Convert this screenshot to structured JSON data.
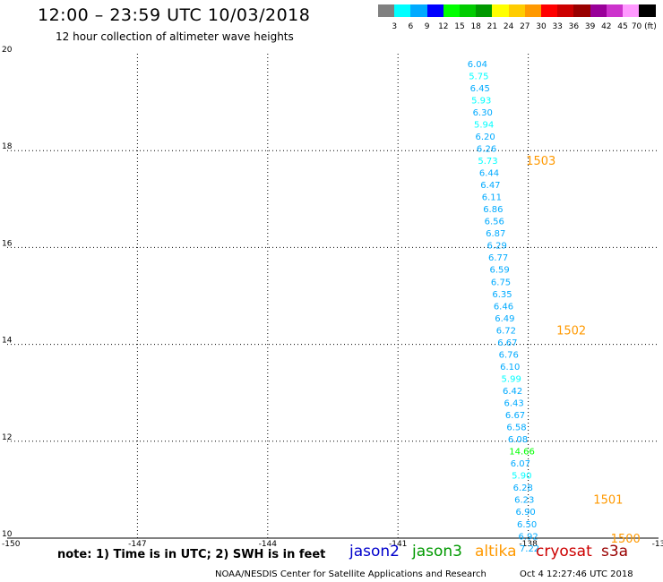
{
  "header": {
    "title": "12:00 – 23:59 UTC 10/03/2018",
    "subtitle": "12 hour collection of altimeter wave heights"
  },
  "color_scale": {
    "labels": [
      "3",
      "6",
      "9",
      "12",
      "15",
      "18",
      "21",
      "24",
      "27",
      "30",
      "33",
      "36",
      "39",
      "42",
      "45",
      "70 (ft)"
    ],
    "colors": [
      "#808080",
      "#00ffff",
      "#00aaff",
      "#0000ff",
      "#00ff00",
      "#00cc00",
      "#009900",
      "#ffff00",
      "#ffcc00",
      "#ff9900",
      "#ff0000",
      "#cc0000",
      "#990000",
      "#990099",
      "#cc33cc",
      "#ff99ff",
      "#000000"
    ]
  },
  "chart_data": {
    "type": "scatter",
    "xlim": [
      -150,
      -135
    ],
    "ylim": [
      10,
      20
    ],
    "x_ticks": [
      "-150",
      "-147",
      "-144",
      "-141",
      "-138",
      "-13"
    ],
    "y_ticks": [
      "10",
      "12",
      "14",
      "16",
      "18",
      "20"
    ],
    "grid": true,
    "points": [
      {
        "lon": -139.4,
        "lat": 19.8,
        "swh": "6.04",
        "color": "#00aaff"
      },
      {
        "lon": -139.37,
        "lat": 19.55,
        "swh": "5.75",
        "color": "#00ffff"
      },
      {
        "lon": -139.34,
        "lat": 19.3,
        "swh": "6.45",
        "color": "#00aaff"
      },
      {
        "lon": -139.31,
        "lat": 19.05,
        "swh": "5.93",
        "color": "#00ffff"
      },
      {
        "lon": -139.28,
        "lat": 18.8,
        "swh": "6.30",
        "color": "#00aaff"
      },
      {
        "lon": -139.25,
        "lat": 18.55,
        "swh": "5.94",
        "color": "#00ffff"
      },
      {
        "lon": -139.22,
        "lat": 18.3,
        "swh": "6.20",
        "color": "#00aaff"
      },
      {
        "lon": -139.19,
        "lat": 18.05,
        "swh": "6.26",
        "color": "#00aaff"
      },
      {
        "lon": -139.16,
        "lat": 17.8,
        "swh": "5.73",
        "color": "#00ffff"
      },
      {
        "lon": -139.13,
        "lat": 17.55,
        "swh": "6.44",
        "color": "#00aaff"
      },
      {
        "lon": -139.1,
        "lat": 17.3,
        "swh": "6.47",
        "color": "#00aaff"
      },
      {
        "lon": -139.07,
        "lat": 17.05,
        "swh": "6.11",
        "color": "#00aaff"
      },
      {
        "lon": -139.04,
        "lat": 16.8,
        "swh": "6.86",
        "color": "#00aaff"
      },
      {
        "lon": -139.01,
        "lat": 16.55,
        "swh": "6.56",
        "color": "#00aaff"
      },
      {
        "lon": -138.98,
        "lat": 16.3,
        "swh": "6.87",
        "color": "#00aaff"
      },
      {
        "lon": -138.95,
        "lat": 16.05,
        "swh": "6.29",
        "color": "#00aaff"
      },
      {
        "lon": -138.92,
        "lat": 15.8,
        "swh": "6.77",
        "color": "#00aaff"
      },
      {
        "lon": -138.89,
        "lat": 15.55,
        "swh": "6.59",
        "color": "#00aaff"
      },
      {
        "lon": -138.86,
        "lat": 15.3,
        "swh": "6.75",
        "color": "#00aaff"
      },
      {
        "lon": -138.83,
        "lat": 15.05,
        "swh": "6.35",
        "color": "#00aaff"
      },
      {
        "lon": -138.8,
        "lat": 14.8,
        "swh": "6.46",
        "color": "#00aaff"
      },
      {
        "lon": -138.77,
        "lat": 14.55,
        "swh": "6.49",
        "color": "#00aaff"
      },
      {
        "lon": -138.74,
        "lat": 14.3,
        "swh": "6.72",
        "color": "#00aaff"
      },
      {
        "lon": -138.71,
        "lat": 14.05,
        "swh": "6.67",
        "color": "#00aaff"
      },
      {
        "lon": -138.68,
        "lat": 13.8,
        "swh": "6.76",
        "color": "#00aaff"
      },
      {
        "lon": -138.65,
        "lat": 13.55,
        "swh": "6.10",
        "color": "#00aaff"
      },
      {
        "lon": -138.62,
        "lat": 13.3,
        "swh": "5.99",
        "color": "#00ffff"
      },
      {
        "lon": -138.59,
        "lat": 13.05,
        "swh": "6.42",
        "color": "#00aaff"
      },
      {
        "lon": -138.56,
        "lat": 12.8,
        "swh": "6.43",
        "color": "#00aaff"
      },
      {
        "lon": -138.53,
        "lat": 12.55,
        "swh": "6.67",
        "color": "#00aaff"
      },
      {
        "lon": -138.5,
        "lat": 12.3,
        "swh": "6.58",
        "color": "#00aaff"
      },
      {
        "lon": -138.47,
        "lat": 12.05,
        "swh": "6.08",
        "color": "#00aaff"
      },
      {
        "lon": -138.44,
        "lat": 11.8,
        "swh": "14.66",
        "color": "#00ff00"
      },
      {
        "lon": -138.41,
        "lat": 11.55,
        "swh": "6.07",
        "color": "#00aaff"
      },
      {
        "lon": -138.38,
        "lat": 11.3,
        "swh": "5.90",
        "color": "#00ffff"
      },
      {
        "lon": -138.35,
        "lat": 11.05,
        "swh": "6.28",
        "color": "#00aaff"
      },
      {
        "lon": -138.32,
        "lat": 10.8,
        "swh": "6.23",
        "color": "#00aaff"
      },
      {
        "lon": -138.29,
        "lat": 10.55,
        "swh": "6.90",
        "color": "#00aaff"
      },
      {
        "lon": -138.26,
        "lat": 10.3,
        "swh": "6.50",
        "color": "#00aaff"
      },
      {
        "lon": -138.23,
        "lat": 10.05,
        "swh": "6.92",
        "color": "#00aaff"
      },
      {
        "lon": -138.2,
        "lat": 9.8,
        "swh": "7.22",
        "color": "#00aaff"
      }
    ],
    "time_labels": [
      {
        "lon": -138.05,
        "lat": 17.8,
        "text": "1503",
        "color": "#ff9900"
      },
      {
        "lon": -137.35,
        "lat": 14.3,
        "text": "1502",
        "color": "#ff9900"
      },
      {
        "lon": -136.5,
        "lat": 10.8,
        "text": "1501",
        "color": "#ff9900"
      },
      {
        "lon": -136.1,
        "lat": 10.0,
        "text": "1500",
        "color": "#ff9900"
      }
    ]
  },
  "legend": {
    "note": "note:  1) Time is in UTC;  2) SWH is in feet",
    "satellites": [
      {
        "name": "jason2",
        "color": "#0000cc"
      },
      {
        "name": "jason3",
        "color": "#009900"
      },
      {
        "name": "altika",
        "color": "#ff9900"
      },
      {
        "name": "cryosat",
        "color": "#cc0000"
      },
      {
        "name": "s3a",
        "color": "#990000"
      }
    ]
  },
  "footer": {
    "credit": "NOAA/NESDIS Center for Satellite Applications and Research",
    "timestamp": "Oct  4 12:27:46 UTC 2018"
  }
}
